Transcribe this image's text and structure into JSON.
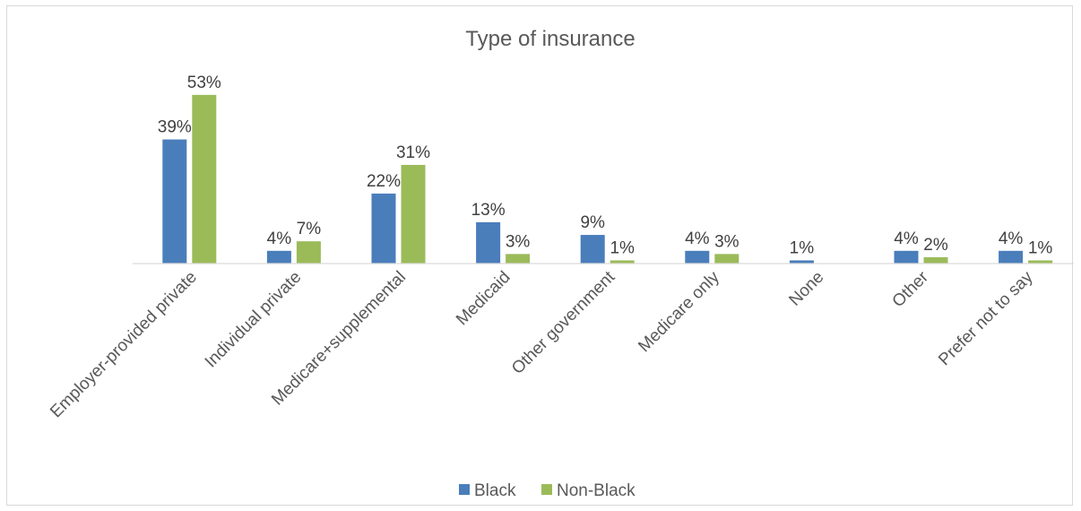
{
  "chart_data": {
    "type": "bar",
    "title": "Type of insurance",
    "xlabel": "",
    "ylabel": "",
    "categories": [
      "Employer-provided private",
      "Individual private",
      "Medicare+supplemental",
      "Medicaid",
      "Other government",
      "Medicare only",
      "None",
      "Other",
      "Prefer not to say"
    ],
    "series": [
      {
        "name": "Black",
        "color": "#4a7ebb",
        "values": [
          39,
          4,
          22,
          13,
          9,
          4,
          1,
          4,
          4
        ],
        "labels": [
          "39%",
          "4%",
          "22%",
          "13%",
          "9%",
          "4%",
          "1%",
          "4%",
          "4%"
        ]
      },
      {
        "name": "Non-Black",
        "color": "#9bbb59",
        "values": [
          53,
          7,
          31,
          3,
          1,
          3,
          0,
          2,
          1
        ],
        "labels": [
          "53%",
          "7%",
          "31%",
          "3%",
          "1%",
          "3%",
          "",
          "2%",
          "1%"
        ]
      }
    ],
    "ylim": [
      0,
      60
    ],
    "unit": "%",
    "grid": false,
    "legend_position": "bottom"
  }
}
